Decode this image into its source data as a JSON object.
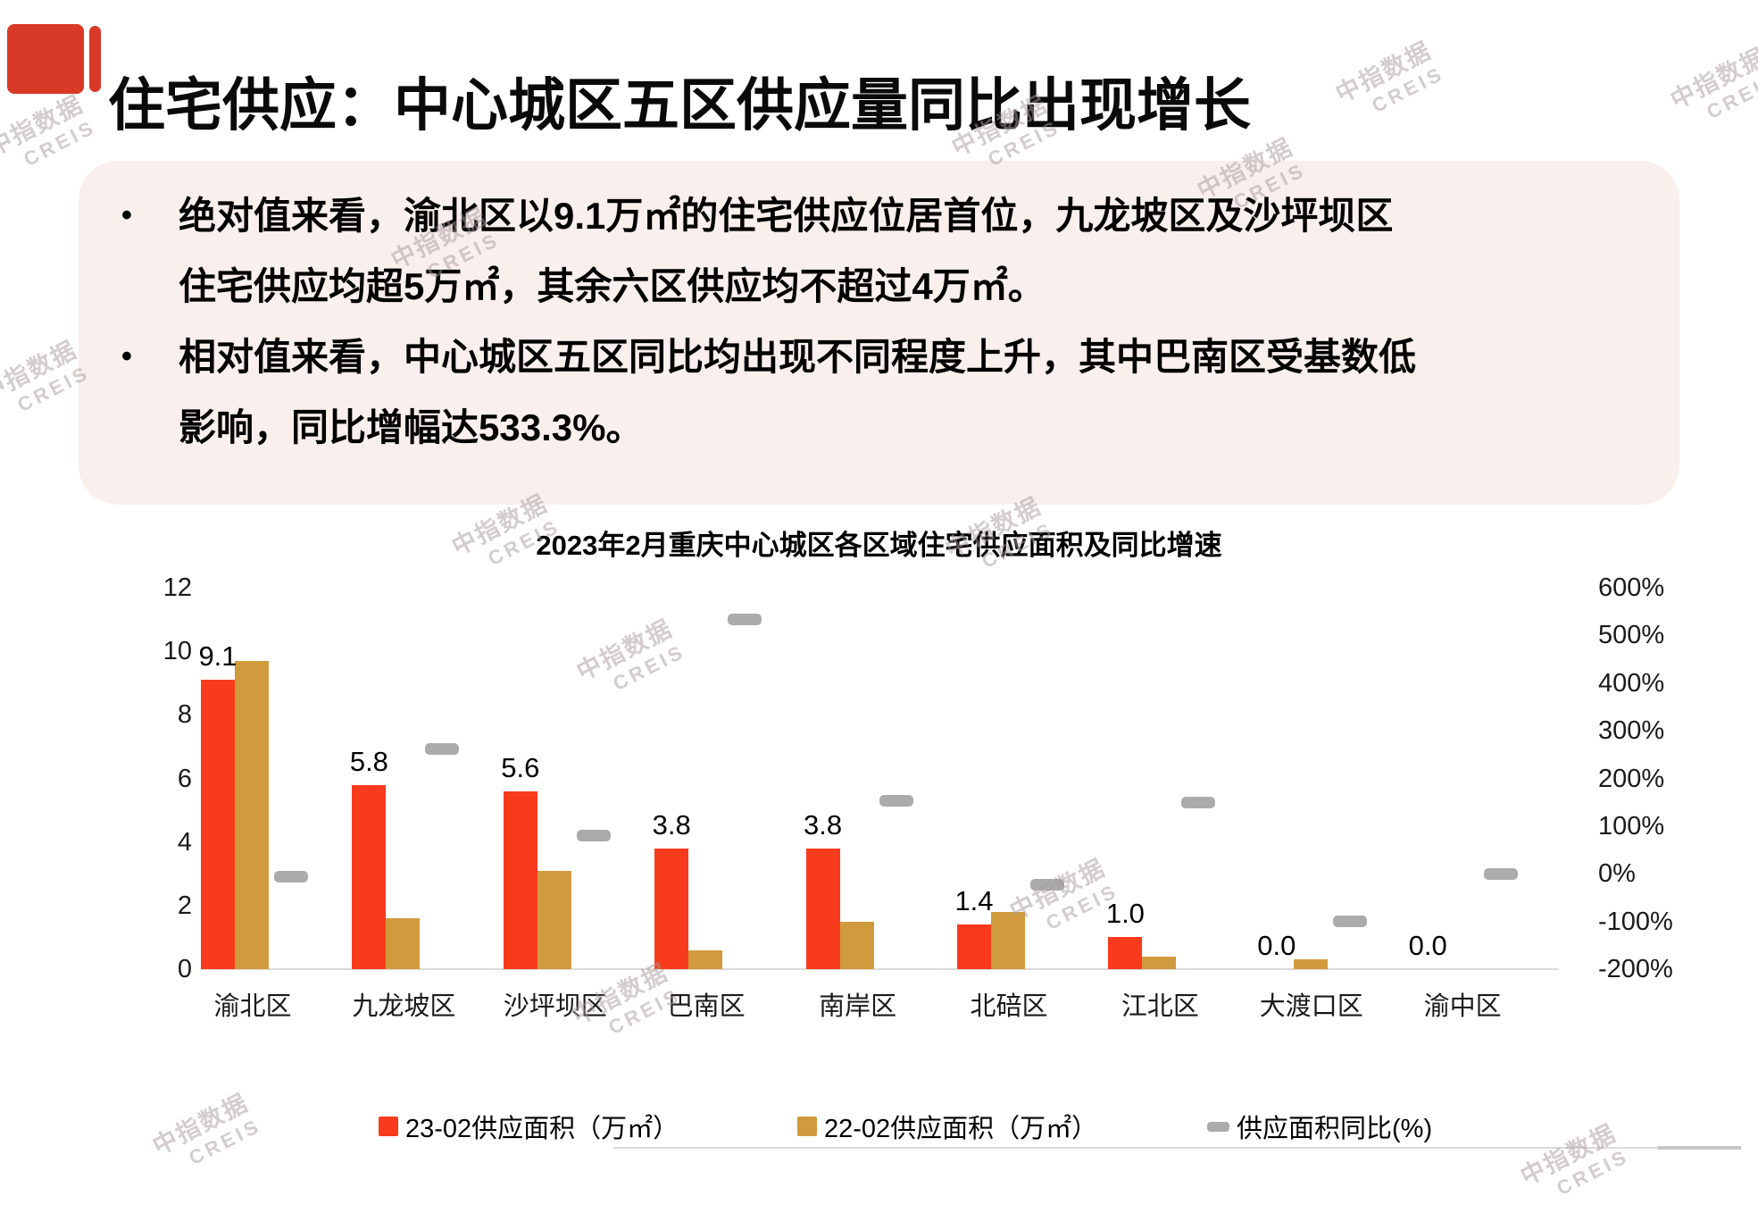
{
  "page": {
    "title": "住宅供应：中心城区五区供应量同比出现增长"
  },
  "summary": {
    "bullets": [
      {
        "lines": [
          "绝对值来看，渝北区以9.1万㎡的住宅供应位居首位，九龙坡区及沙坪坝区",
          "住宅供应均超5万㎡，其余六区供应均不超过4万㎡。"
        ]
      },
      {
        "lines": [
          "相对值来看，中心城区五区同比均出现不同程度上升，其中巴南区受基数低",
          "影响，同比增幅达533.3%。"
        ]
      }
    ]
  },
  "chart_data": {
    "type": "bar",
    "title": "2023年2月重庆中心城区各区域住宅供应面积及同比增速",
    "categories": [
      "渝北区",
      "九龙坡区",
      "沙坪坝区",
      "巴南区",
      "南岸区",
      "北碚区",
      "江北区",
      "大渡口区",
      "渝中区"
    ],
    "series": [
      {
        "name": "23-02供应面积（万㎡）",
        "type": "bar",
        "axis": "left",
        "color": "#F93B1D",
        "values": [
          9.1,
          5.8,
          5.6,
          3.8,
          3.8,
          1.4,
          1.0,
          0.0,
          0.0
        ],
        "labels": [
          "9.1",
          "5.8",
          "5.6",
          "3.8",
          "3.8",
          "1.4",
          "1.0",
          "0.0",
          "0.0"
        ]
      },
      {
        "name": "22-02供应面积（万㎡）",
        "type": "bar",
        "axis": "left",
        "color": "#D09B3D",
        "values": [
          9.7,
          1.6,
          3.1,
          0.6,
          1.5,
          1.8,
          0.4,
          0.3,
          0.0
        ]
      },
      {
        "name": "供应面积同比(%)",
        "type": "dash",
        "axis": "right",
        "color": "#ABABAB",
        "values": [
          -6.2,
          262.5,
          80.6,
          533.3,
          153.3,
          -22.2,
          150.0,
          -100.0,
          0.0
        ]
      }
    ],
    "left_axis": {
      "min": 0,
      "max": 12,
      "ticks": [
        0,
        2,
        4,
        6,
        8,
        10,
        12
      ]
    },
    "right_axis": {
      "min": -200,
      "max": 600,
      "ticks": [
        "600%",
        "500%",
        "400%",
        "300%",
        "200%",
        "100%",
        "0%",
        "-100%",
        "-200%"
      ]
    },
    "legend_position": "bottom",
    "grid": false
  },
  "watermark": {
    "line1": "中指数据",
    "line2": "CREIS"
  },
  "colors": {
    "accent_red": "#D93927",
    "bar_2302": "#F93B1D",
    "bar_2202": "#D09B3D",
    "yoy_gray": "#ABABAB",
    "summary_box": "#F9EFEC",
    "axis_line": "#D9D9D9"
  }
}
